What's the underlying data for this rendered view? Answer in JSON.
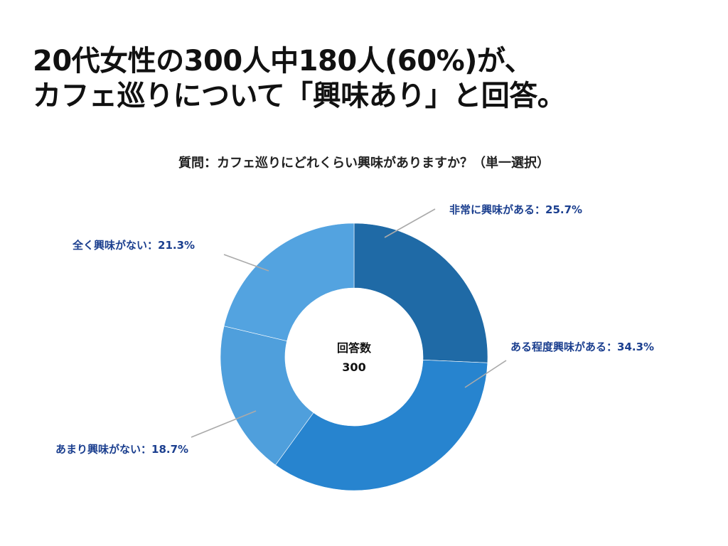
{
  "headline": {
    "line1": "20代女性の300人中180人(60%)が、",
    "line2": "カフェ巡りについて「興味あり」と回答。"
  },
  "chart_data": {
    "type": "pie",
    "title": "質問：カフェ巡りにどれくらい興味がありますか？（単一選択）",
    "center_label": "回答数",
    "center_value": "300",
    "unit": "%",
    "slices": [
      {
        "label": "非常に興味がある",
        "value": 25.7,
        "display": "非常に興味がある：25.7%",
        "color": "#1f6aa6"
      },
      {
        "label": "ある程度興味がある",
        "value": 34.3,
        "display": "ある程度興味がある：34.3%",
        "color": "#2784cf"
      },
      {
        "label": "あまり興味がない",
        "value": 18.7,
        "display": "あまり興味がない：18.7%",
        "color": "#4f9fdc"
      },
      {
        "label": "全く興味がない",
        "value": 21.3,
        "display": "全く興味がない：21.3%",
        "color": "#53a3e0"
      }
    ],
    "label_color": "#1b3f8f",
    "leader_color": "#aaaaaa"
  }
}
